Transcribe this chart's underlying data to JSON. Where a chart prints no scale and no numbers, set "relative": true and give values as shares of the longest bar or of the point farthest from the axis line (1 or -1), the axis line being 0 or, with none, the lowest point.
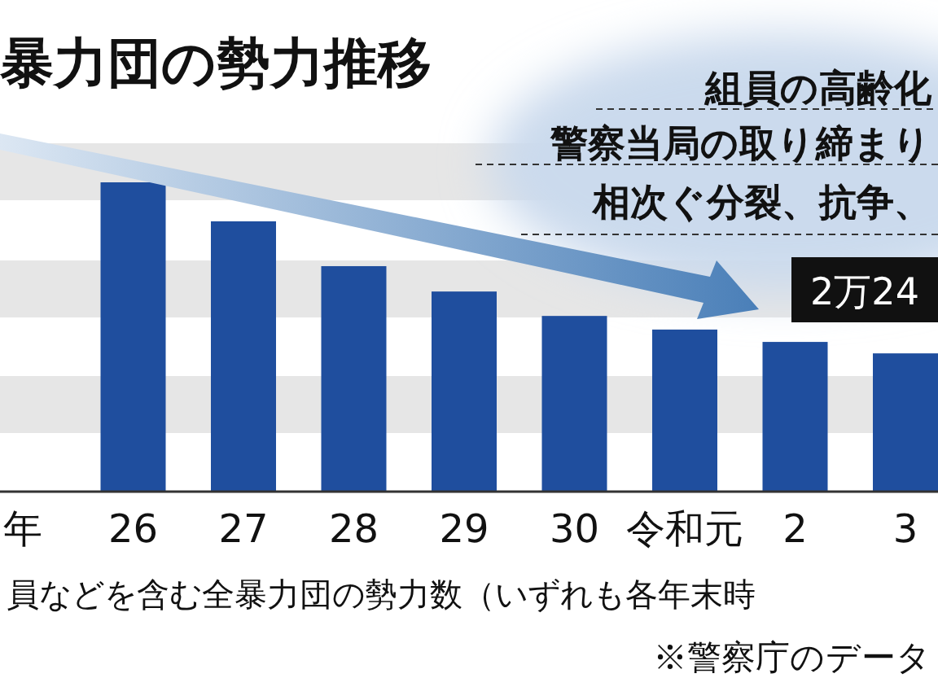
{
  "chart_data": {
    "type": "bar",
    "title": "暴力団の勢力推移",
    "relative": true,
    "categories": [
      "年",
      "26",
      "27",
      "28",
      "29",
      "30",
      "令和元",
      "2",
      "3"
    ],
    "values": [
      null,
      1,
      0.874,
      0.729,
      0.647,
      0.568,
      0.524,
      0.484,
      0.447
    ],
    "color": "#1f4e9e",
    "annotations": [
      "組員の高齢化",
      "警察当局の取り締まり",
      "相次ぐ分裂、抗争、",
      "2万24",
      "員などを含む全暴力団の勢力数（いずれも各年末時",
      "※警察庁のデータ"
    ]
  }
}
